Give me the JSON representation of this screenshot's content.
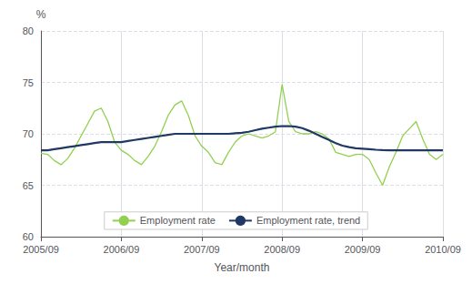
{
  "chart_data": {
    "type": "line",
    "xlabel": "Year/month",
    "ylabel": "%",
    "categories": [
      "2005/09",
      null,
      null,
      null,
      null,
      null,
      null,
      null,
      null,
      null,
      null,
      null,
      "2006/09",
      null,
      null,
      null,
      null,
      null,
      null,
      null,
      null,
      null,
      null,
      null,
      "2007/09",
      null,
      null,
      null,
      null,
      null,
      null,
      null,
      null,
      null,
      null,
      null,
      "2008/09",
      null,
      null,
      null,
      null,
      null,
      null,
      null,
      null,
      null,
      null,
      null,
      "2009/09",
      null,
      null,
      null,
      null,
      null,
      null,
      null,
      null,
      null,
      null,
      null,
      "2010/09"
    ],
    "series": [
      {
        "name": "Employment rate",
        "color": "#92d050",
        "values": [
          68.1,
          68.0,
          67.4,
          67.0,
          67.6,
          68.6,
          69.8,
          71.0,
          72.2,
          72.5,
          71.2,
          69.2,
          68.4,
          68.0,
          67.4,
          67.0,
          67.8,
          68.8,
          70.2,
          71.8,
          72.8,
          73.2,
          71.8,
          69.8,
          68.8,
          68.2,
          67.2,
          67.0,
          68.2,
          69.2,
          69.8,
          70.0,
          69.8,
          69.6,
          69.8,
          70.2,
          74.8,
          71.2,
          70.2,
          70.0,
          70.0,
          70.2,
          70.0,
          69.5,
          68.2,
          68.0,
          67.8,
          68.0,
          68.0,
          67.5,
          66.2,
          65.0,
          66.8,
          68.2,
          69.8,
          70.5,
          71.2,
          69.5,
          68.0,
          67.5,
          68.0
        ]
      },
      {
        "name": "Employment rate, trend",
        "color": "#1f3864",
        "values": [
          68.4,
          68.4,
          68.5,
          68.6,
          68.7,
          68.8,
          68.9,
          69.0,
          69.1,
          69.2,
          69.2,
          69.2,
          69.2,
          69.3,
          69.4,
          69.5,
          69.6,
          69.7,
          69.8,
          69.9,
          70.0,
          70.0,
          70.0,
          70.0,
          70.0,
          70.0,
          70.0,
          70.0,
          70.0,
          70.05,
          70.1,
          70.2,
          70.35,
          70.5,
          70.6,
          70.7,
          70.75,
          70.75,
          70.7,
          70.55,
          70.3,
          70.0,
          69.7,
          69.4,
          69.1,
          68.85,
          68.7,
          68.6,
          68.55,
          68.5,
          68.45,
          68.42,
          68.4,
          68.4,
          68.4,
          68.4,
          68.4,
          68.4,
          68.4,
          68.4,
          68.4
        ]
      }
    ],
    "ylim": [
      60,
      80
    ],
    "yticks": [
      60,
      65,
      70,
      75,
      80
    ],
    "grid": true,
    "legend": "bottom"
  }
}
